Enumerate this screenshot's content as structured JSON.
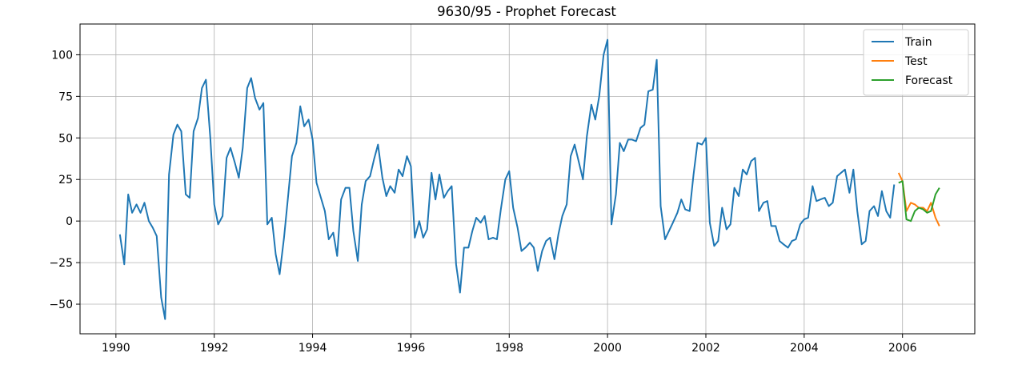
{
  "chart_data": {
    "type": "line",
    "title": "9630/95 - Prophet Forecast",
    "xlabel": "",
    "ylabel": "",
    "xlim": [
      1989.27,
      2007.47
    ],
    "ylim": [
      -67.8,
      118.5
    ],
    "grid": true,
    "legend_position": "top-right",
    "x_ticks": [
      1990,
      1992,
      1994,
      1996,
      1998,
      2000,
      2002,
      2004,
      2006
    ],
    "x_tick_labels": [
      "1990",
      "1992",
      "1994",
      "1996",
      "1998",
      "2000",
      "2002",
      "2004",
      "2006"
    ],
    "y_ticks": [
      -50,
      -25,
      0,
      25,
      50,
      75,
      100
    ],
    "y_tick_labels": [
      "−50",
      "−25",
      "0",
      "25",
      "50",
      "75",
      "100"
    ],
    "series": [
      {
        "name": "Train",
        "color": "#1f77b4",
        "x": [
          1990.08,
          1990.17,
          1990.25,
          1990.33,
          1990.42,
          1990.5,
          1990.58,
          1990.67,
          1990.75,
          1990.83,
          1990.92,
          1991.0,
          1991.08,
          1991.17,
          1991.25,
          1991.33,
          1991.42,
          1991.5,
          1991.58,
          1991.67,
          1991.75,
          1991.83,
          1991.92,
          1992.0,
          1992.08,
          1992.17,
          1992.25,
          1992.33,
          1992.42,
          1992.5,
          1992.58,
          1992.67,
          1992.75,
          1992.83,
          1992.92,
          1993.0,
          1993.08,
          1993.17,
          1993.25,
          1993.33,
          1993.42,
          1993.5,
          1993.58,
          1993.67,
          1993.75,
          1993.83,
          1993.92,
          1994.0,
          1994.08,
          1994.17,
          1994.25,
          1994.33,
          1994.42,
          1994.5,
          1994.58,
          1994.67,
          1994.75,
          1994.83,
          1994.92,
          1995.0,
          1995.08,
          1995.17,
          1995.25,
          1995.33,
          1995.42,
          1995.5,
          1995.58,
          1995.67,
          1995.75,
          1995.83,
          1995.92,
          1996.0,
          1996.08,
          1996.17,
          1996.25,
          1996.33,
          1996.42,
          1996.5,
          1996.58,
          1996.67,
          1996.75,
          1996.83,
          1996.92,
          1997.0,
          1997.08,
          1997.17,
          1997.25,
          1997.33,
          1997.42,
          1997.5,
          1997.58,
          1997.67,
          1997.75,
          1997.83,
          1997.92,
          1998.0,
          1998.08,
          1998.17,
          1998.25,
          1998.33,
          1998.42,
          1998.5,
          1998.58,
          1998.67,
          1998.75,
          1998.83,
          1998.92,
          1999.0,
          1999.08,
          1999.17,
          1999.25,
          1999.33,
          1999.42,
          1999.5,
          1999.58,
          1999.67,
          1999.75,
          1999.83,
          1999.92,
          2000.0,
          2000.08,
          2000.17,
          2000.25,
          2000.33,
          2000.42,
          2000.5,
          2000.58,
          2000.67,
          2000.75,
          2000.83,
          2000.92,
          2001.0,
          2001.08,
          2001.17,
          2001.25,
          2001.33,
          2001.42,
          2001.5,
          2001.58,
          2001.67,
          2001.75,
          2001.83,
          2001.92,
          2002.0,
          2002.08,
          2002.17,
          2002.25,
          2002.33,
          2002.42,
          2002.5,
          2002.58,
          2002.67,
          2002.75,
          2002.83,
          2002.92,
          2003.0,
          2003.08,
          2003.17,
          2003.25,
          2003.33,
          2003.42,
          2003.5,
          2003.58,
          2003.67,
          2003.75,
          2003.83,
          2003.92,
          2004.0,
          2004.08,
          2004.17,
          2004.25,
          2004.33,
          2004.42,
          2004.5,
          2004.58,
          2004.67,
          2004.75,
          2004.83,
          2004.92,
          2005.0,
          2005.08,
          2005.17,
          2005.25,
          2005.33,
          2005.42,
          2005.5,
          2005.58,
          2005.67,
          2005.75,
          2005.83
        ],
        "values": [
          -8,
          -26,
          16,
          5,
          10,
          5,
          11,
          0,
          -4,
          -9,
          -46,
          -59,
          28,
          52,
          58,
          54,
          16,
          14,
          54,
          62,
          80,
          85,
          50,
          10,
          -2,
          3,
          38,
          44,
          35,
          26,
          44,
          80,
          86,
          74,
          67,
          71,
          -2,
          2,
          -20,
          -32,
          -10,
          14,
          39,
          47,
          69,
          57,
          61,
          49,
          23,
          14,
          6,
          -11,
          -7,
          -21,
          13,
          20,
          20,
          -6,
          -24,
          10,
          24,
          27,
          37,
          46,
          26,
          15,
          21,
          17,
          31,
          27,
          39,
          33,
          -10,
          0,
          -10,
          -5,
          29,
          13,
          28,
          14,
          18,
          21,
          -26,
          -43,
          -16,
          -16,
          -6,
          2,
          -1,
          3,
          -11,
          -10,
          -11,
          7,
          25,
          30,
          8,
          -4,
          -18,
          -16,
          -13,
          -16,
          -30,
          -18,
          -12,
          -10,
          -23,
          -8,
          3,
          10,
          39,
          46,
          35,
          25,
          51,
          70,
          61,
          75,
          100,
          109,
          -2,
          16,
          47,
          42,
          49,
          49,
          48,
          56,
          58,
          78,
          79,
          97,
          9,
          -11,
          -6,
          -1,
          5,
          13,
          7,
          6,
          28,
          47,
          46,
          50,
          -1,
          -15,
          -12,
          8,
          -5,
          -2,
          20,
          15,
          31,
          28,
          36,
          38,
          6,
          11,
          12,
          -3,
          -3,
          -12,
          -14,
          -16,
          -12,
          -11,
          -2,
          1,
          2,
          21,
          12,
          13,
          14,
          9,
          11,
          27,
          29,
          31,
          17,
          31,
          6,
          -14,
          -12,
          6,
          9,
          3,
          18,
          6,
          2,
          22
        ]
      },
      {
        "name": "Test",
        "color": "#ff7f0e",
        "x": [
          2005.92,
          2006.0,
          2006.08,
          2006.17,
          2006.25,
          2006.33,
          2006.42,
          2006.5,
          2006.58,
          2006.67,
          2006.75
        ],
        "values": [
          29,
          24,
          6,
          11,
          10,
          8,
          8,
          6,
          11,
          2,
          -3
        ]
      },
      {
        "name": "Forecast",
        "color": "#2ca02c",
        "x": [
          2005.92,
          2006.0,
          2006.08,
          2006.17,
          2006.25,
          2006.33,
          2006.42,
          2006.5,
          2006.58,
          2006.67,
          2006.75
        ],
        "values": [
          23,
          24,
          1,
          0,
          6,
          8,
          7,
          5,
          6,
          16,
          20
        ]
      }
    ]
  }
}
